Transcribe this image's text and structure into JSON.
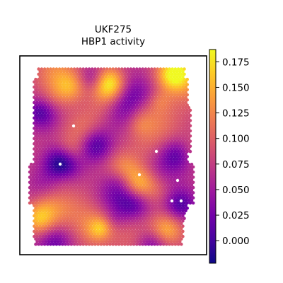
{
  "chart_data": {
    "type": "heatmap",
    "title": "UKF275",
    "subtitle": "HBP1 activity",
    "xlabel": "",
    "ylabel": "",
    "colormap": "plasma",
    "colorbar": {
      "vmin": -0.022,
      "vmax": 0.187,
      "ticks": [
        0.0,
        0.025,
        0.05,
        0.075,
        0.1,
        0.125,
        0.15,
        0.175
      ],
      "tick_labels": [
        "0.000",
        "0.025",
        "0.050",
        "0.075",
        "0.100",
        "0.125",
        "0.150",
        "0.175"
      ],
      "placement": "right"
    },
    "grid": false,
    "axis_frame": true,
    "tissue": "hexagonal spot grid covering most of the frame",
    "palette": {
      "plasma": [
        "#0d0887",
        "#46039f",
        "#7201a8",
        "#9c179e",
        "#bd3786",
        "#d8576b",
        "#ed7953",
        "#fb9f3a",
        "#fdca26",
        "#f0f921"
      ]
    }
  }
}
